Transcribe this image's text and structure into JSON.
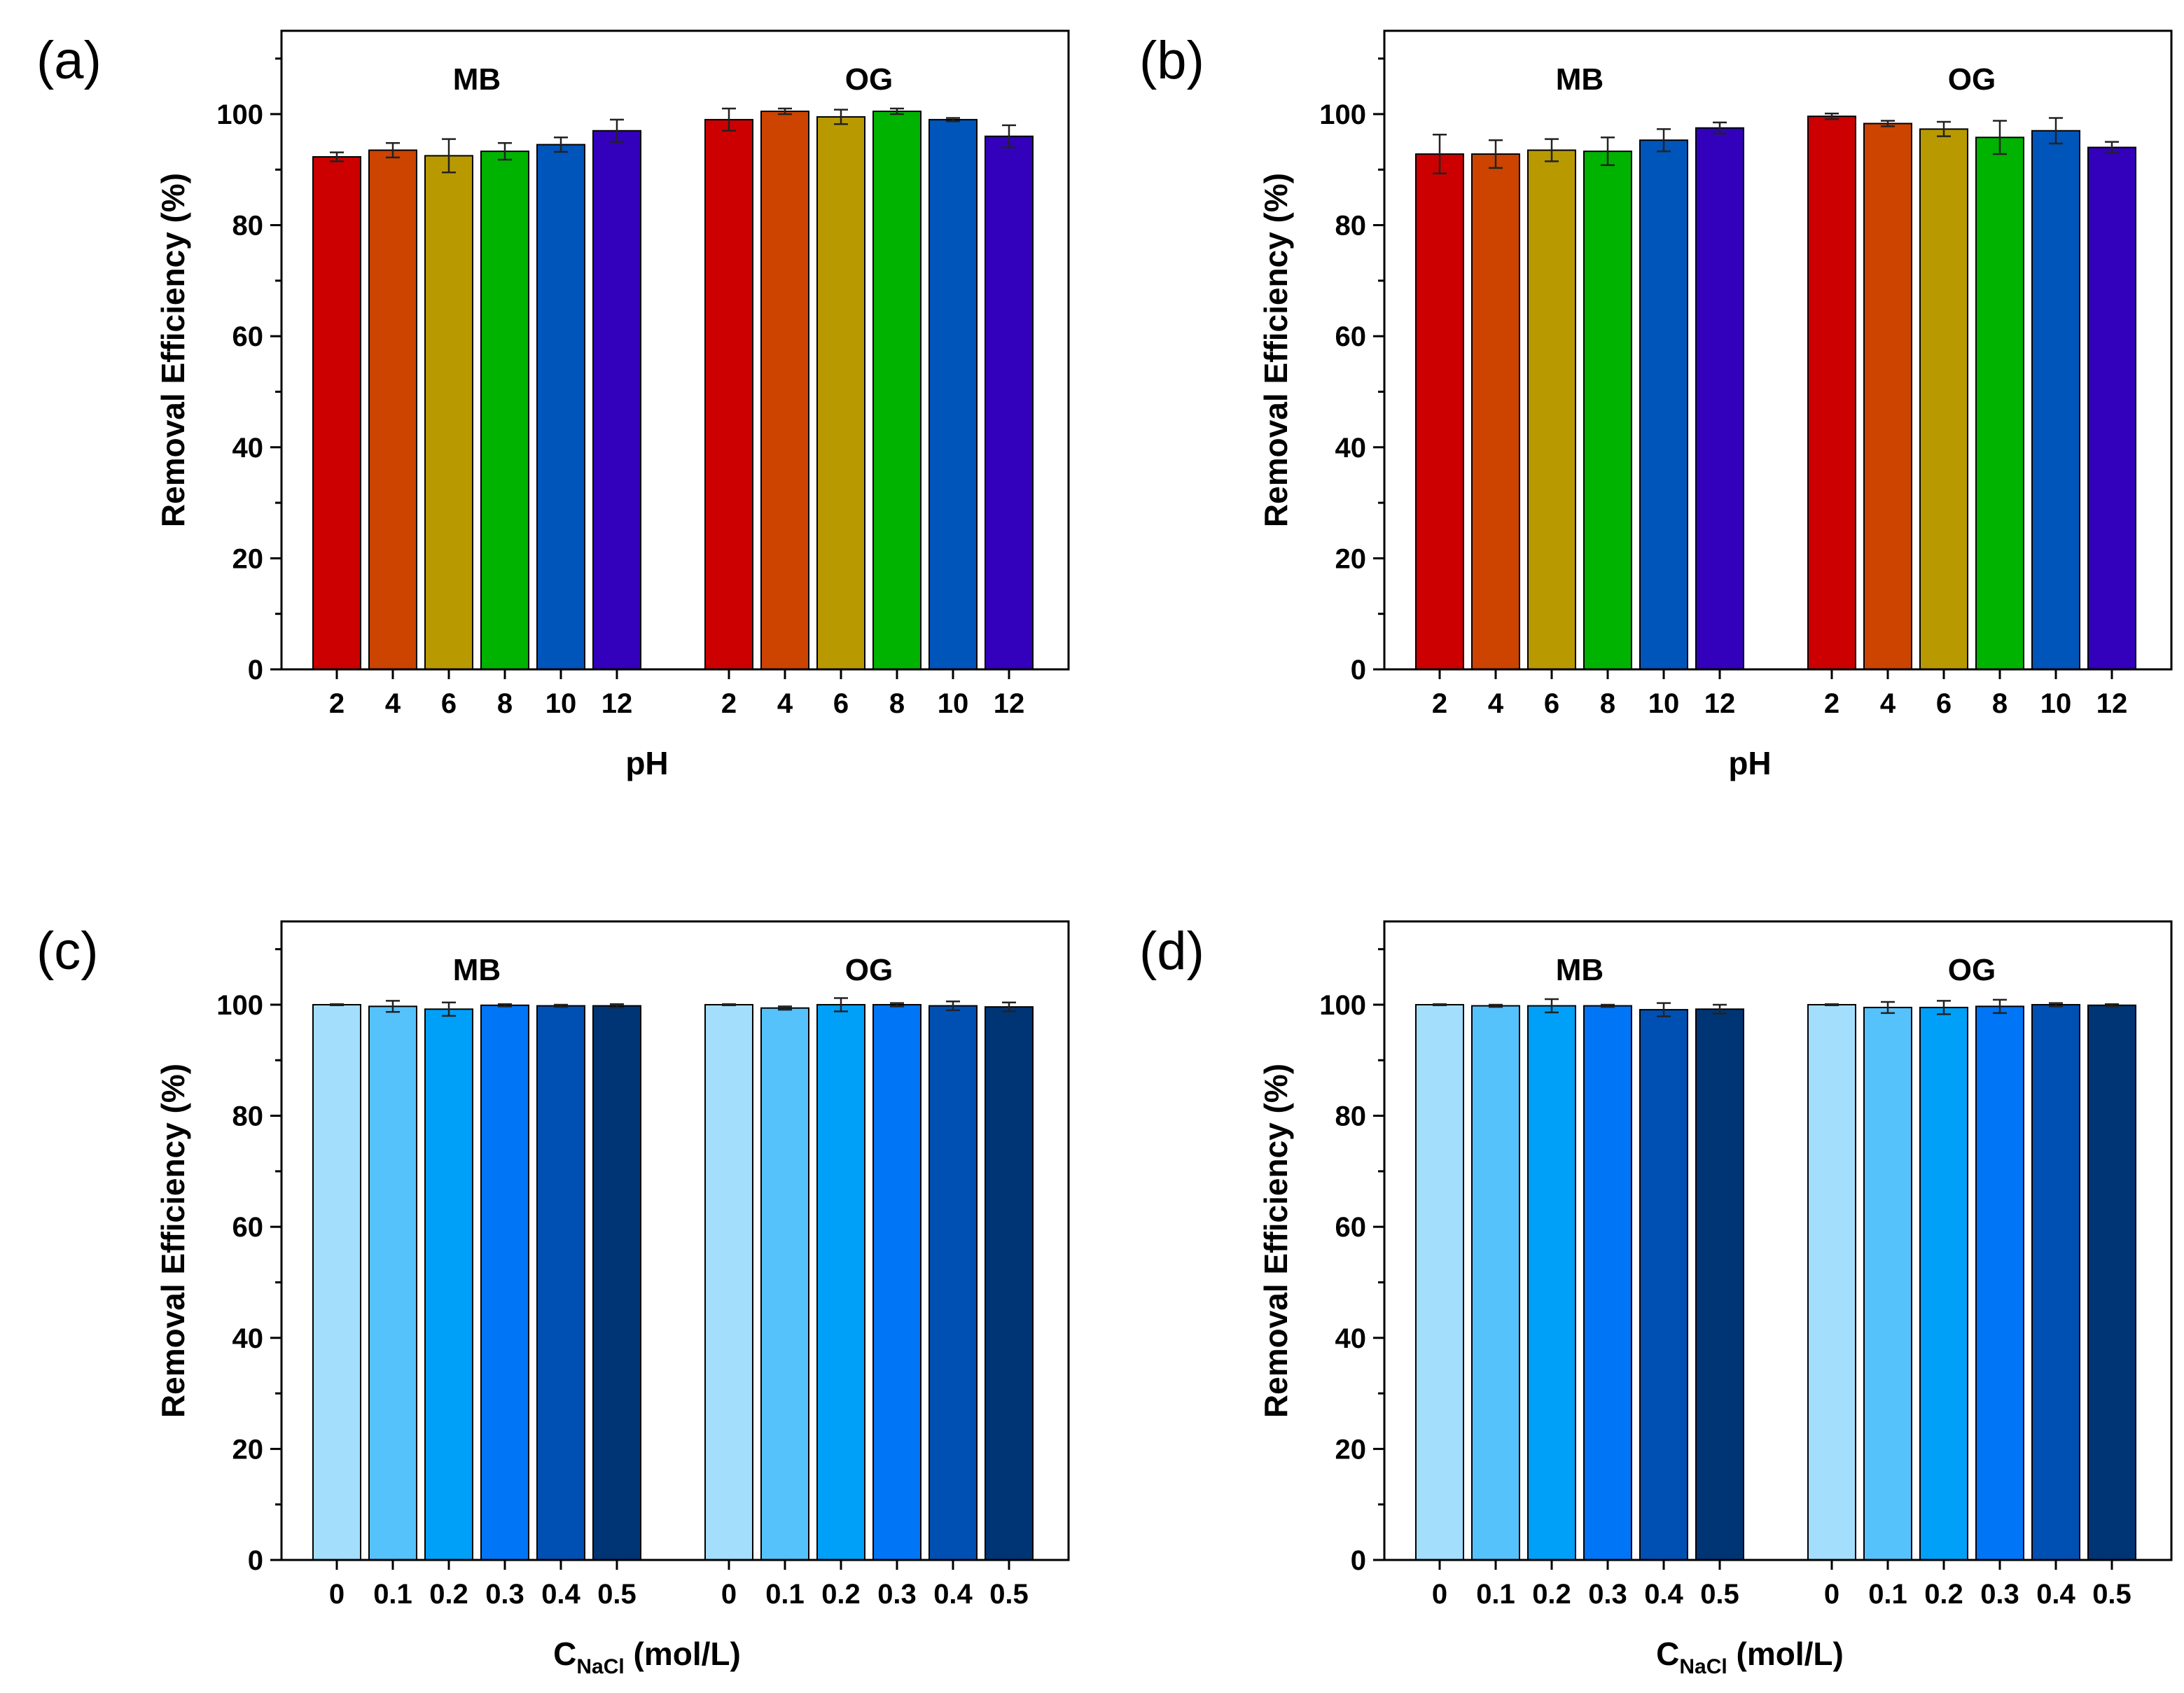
{
  "chart_data": [
    {
      "panel": "(a)",
      "type": "bar",
      "groups": [
        "MB",
        "OG"
      ],
      "categories": [
        "2",
        "4",
        "6",
        "8",
        "10",
        "12"
      ],
      "series": [
        {
          "name": "MB",
          "values": [
            92.3,
            93.5,
            92.5,
            93.3,
            94.5,
            97.0
          ],
          "errors": [
            0.8,
            1.3,
            3.0,
            1.5,
            1.3,
            2.0
          ]
        },
        {
          "name": "OG",
          "values": [
            99.0,
            100.5,
            99.5,
            100.5,
            99.0,
            96.0
          ],
          "errors": [
            2.0,
            0.5,
            1.3,
            0.5,
            0.3,
            2.0
          ]
        }
      ],
      "colors": [
        "#cc0000",
        "#cc4400",
        "#b89a00",
        "#00b300",
        "#0055bb",
        "#3300bb"
      ],
      "xlabel": "pH",
      "ylabel": "Removal Efficiency (%)",
      "yticks": [
        "0",
        "20",
        "40",
        "60",
        "80",
        "100"
      ],
      "ylim": [
        0,
        115
      ]
    },
    {
      "panel": "(b)",
      "type": "bar",
      "groups": [
        "MB",
        "OG"
      ],
      "categories": [
        "2",
        "4",
        "6",
        "8",
        "10",
        "12"
      ],
      "series": [
        {
          "name": "MB",
          "values": [
            92.8,
            92.8,
            93.5,
            93.3,
            95.3,
            97.5
          ],
          "errors": [
            3.5,
            2.5,
            2.0,
            2.5,
            2.0,
            1.0
          ]
        },
        {
          "name": "OG",
          "values": [
            99.6,
            98.3,
            97.3,
            95.8,
            97.0,
            94.0
          ],
          "errors": [
            0.5,
            0.5,
            1.3,
            3.0,
            2.3,
            1.0
          ]
        }
      ],
      "colors": [
        "#cc0000",
        "#cc4400",
        "#b89a00",
        "#00b300",
        "#0055bb",
        "#3300bb"
      ],
      "xlabel": "pH",
      "ylabel": "Removal Efficiency (%)",
      "yticks": [
        "0",
        "20",
        "40",
        "60",
        "80",
        "100"
      ],
      "ylim": [
        0,
        115
      ]
    },
    {
      "panel": "(c)",
      "type": "bar",
      "groups": [
        "MB",
        "OG"
      ],
      "categories": [
        "0",
        "0.1",
        "0.2",
        "0.3",
        "0.4",
        "0.5"
      ],
      "series": [
        {
          "name": "MB",
          "values": [
            100.0,
            99.7,
            99.2,
            99.9,
            99.8,
            99.8
          ],
          "errors": [
            0.1,
            1.0,
            1.2,
            0.2,
            0.2,
            0.3
          ]
        },
        {
          "name": "OG",
          "values": [
            100.0,
            99.4,
            100.0,
            100.0,
            99.8,
            99.6
          ],
          "errors": [
            0.1,
            0.3,
            1.2,
            0.3,
            0.8,
            0.8
          ]
        }
      ],
      "colors": [
        "#a3dffc",
        "#56c2fc",
        "#00a0f8",
        "#0075f5",
        "#0050b3",
        "#003575"
      ],
      "xlabel": "C",
      "xlabel_sub": "NaCl",
      "xlabel_suffix": " (mol/L)",
      "ylabel": "Removal Efficiency (%)",
      "yticks": [
        "0",
        "20",
        "40",
        "60",
        "80",
        "100"
      ],
      "ylim": [
        0,
        115
      ]
    },
    {
      "panel": "(d)",
      "type": "bar",
      "groups": [
        "MB",
        "OG"
      ],
      "categories": [
        "0",
        "0.1",
        "0.2",
        "0.3",
        "0.4",
        "0.5"
      ],
      "series": [
        {
          "name": "MB",
          "values": [
            100.0,
            99.8,
            99.8,
            99.8,
            99.1,
            99.2
          ],
          "errors": [
            0.1,
            0.2,
            1.2,
            0.2,
            1.2,
            0.8
          ]
        },
        {
          "name": "OG",
          "values": [
            100.0,
            99.5,
            99.5,
            99.7,
            100.0,
            99.9
          ],
          "errors": [
            0.1,
            1.0,
            1.2,
            1.2,
            0.3,
            0.2
          ]
        }
      ],
      "colors": [
        "#a3dffc",
        "#56c2fc",
        "#00a0f8",
        "#0075f5",
        "#0050b3",
        "#003575"
      ],
      "xlabel": "C",
      "xlabel_sub": "NaCl",
      "xlabel_suffix": " (mol/L)",
      "ylabel": "Removal Efficiency (%)",
      "yticks": [
        "0",
        "20",
        "40",
        "60",
        "80",
        "100"
      ],
      "ylim": [
        0,
        115
      ]
    }
  ]
}
